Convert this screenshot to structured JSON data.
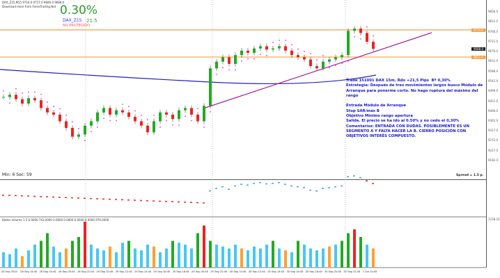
{
  "header": {
    "symbol_line": "DAX_Z15,M15  9716.0 9717.0 9680.0 9688.0",
    "sub_line": "Download more from ForexTrading.Net"
  },
  "badge": {
    "pct": "0.30%",
    "symbol": "DAX_Z15",
    "pips": "21.5",
    "status": "NO PROTEGIDO"
  },
  "note": [
    "Trade 151001 DAX 15m. Rdo +21,5 Pips  Bº 0,30%",
    "Estrategia: Después de tres movimientos largos busco Módulo de Arranque para ponerme corto. No hago ruptura del máximo del rango",
    "",
    "Entrada Módulo de Arranque",
    "Stop SAR/máx B",
    "Objetivo Mínimo rango apertura",
    "Salida. El precio se ha ido al 0.50% y no cedo el 0,30%",
    "Comentarios: ENTRADA CON DUDAS. POSIBLEMENTE ES UN SEGMENTO A Y FALTA HACER LA B. CIERRO POSICIÓN CON OBJETIVOS INTERÉS COMPUESTO."
  ],
  "timer": "Min: 6  Sec: 59",
  "spread": "Spread = 1.5 p.",
  "volume_title": "Better Volume 1.5 0.0000 743.0000 0.0000 0.0000 0.0000 0.0000 979.0000",
  "volume_axis_label": "1238.22",
  "colors": {
    "bull": "#22aa22",
    "bear": "#ee2222",
    "level": "#f5a040",
    "ma": "#2020c0",
    "trend": "#a020a0",
    "sar": "#ff22ff",
    "note": "#1515d0"
  },
  "chart_data": {
    "type": "candlestick",
    "y_ticks": [
      "9856.0",
      "9811.0",
      "9766.0",
      "9721.0",
      "9676.0",
      "9631.0",
      "9586.0",
      "9541.0",
      "9496.0",
      "9451.0",
      "9406.0",
      "9361.0",
      "9317.0",
      "9272.0",
      "9227.0",
      "9182.0"
    ],
    "price_labels": {
      "level_high": "9774.0",
      "current": "9688.0",
      "level_low": "9651.0"
    },
    "x_ticks": [
      "28 Sep 2015",
      "28 Sep 14:45",
      "28 Sep 16:45",
      "28 Sep 20:45",
      "28 Sep 22:45",
      "29 Sep 10:45",
      "29 Sep 12:45",
      "29 Sep 14:45",
      "29 Sep 16:45",
      "29 Sep 18:45",
      "29 Sep 20:45",
      "29 Sep 22:45",
      "30 Sep 10:45",
      "30 Sep 12:45",
      "30 Sep 14:45",
      "30 Sep 16:45",
      "30 Sep 18:45",
      "30 Sep 20:45",
      "30 Sep 22:45",
      "1 Oct 10:45"
    ],
    "closes": [
      9470,
      9480,
      9460,
      9440,
      9465,
      9455,
      9420,
      9400,
      9390,
      9360,
      9330,
      9290,
      9300,
      9340,
      9360,
      9400,
      9420,
      9390,
      9410,
      9400,
      9380,
      9360,
      9340,
      9310,
      9360,
      9400,
      9390,
      9370,
      9410,
      9420,
      9390,
      9360,
      9430,
      9600,
      9630,
      9650,
      9620,
      9660,
      9680,
      9670,
      9690,
      9700,
      9685,
      9690,
      9700,
      9680,
      9660,
      9650,
      9640,
      9610,
      9600,
      9630,
      9640,
      9650,
      9660,
      9770,
      9780,
      9760,
      9720,
      9688
    ],
    "volumes": [
      400,
      350,
      500,
      300,
      450,
      600,
      700,
      900,
      550,
      400,
      500,
      700,
      800,
      1200,
      600,
      500,
      450,
      550,
      400,
      650,
      700,
      500,
      450,
      600,
      550,
      400,
      500,
      700,
      650,
      600,
      500,
      900,
      1100,
      700,
      600,
      550,
      500,
      600,
      500,
      450,
      550,
      500,
      600,
      700,
      500,
      450,
      400,
      700,
      600,
      500,
      450,
      500,
      550,
      600,
      700,
      900,
      1000,
      800,
      600,
      500
    ],
    "levels": [
      9774,
      9651
    ]
  }
}
